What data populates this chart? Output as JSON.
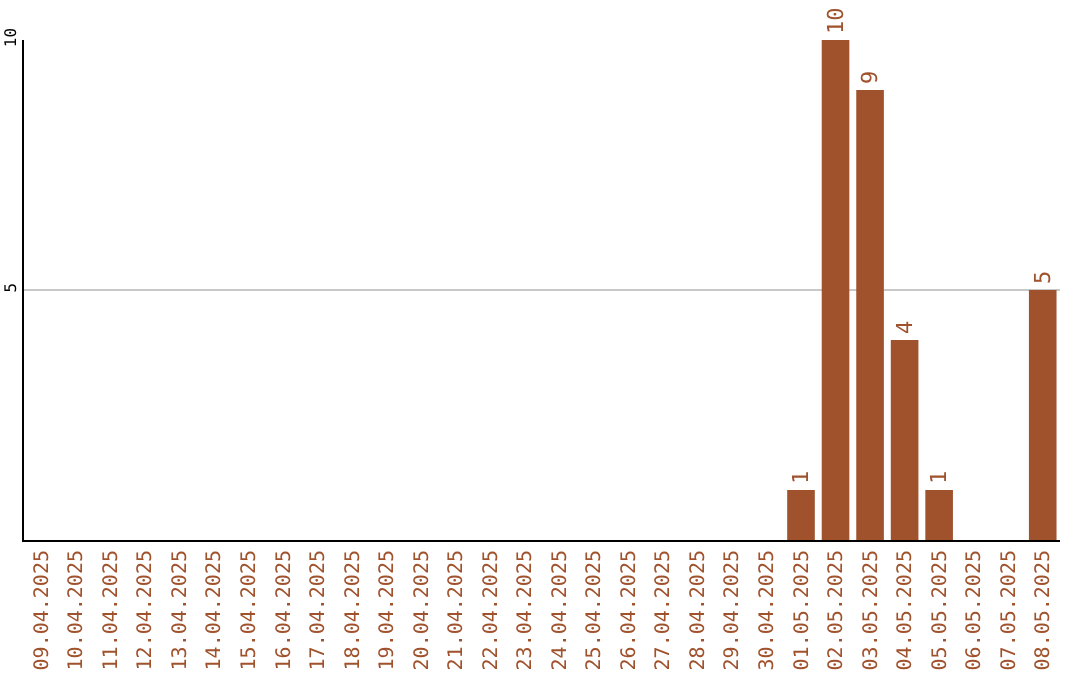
{
  "chart_data": {
    "type": "bar",
    "categories": [
      "09.04.2025",
      "10.04.2025",
      "11.04.2025",
      "12.04.2025",
      "13.04.2025",
      "14.04.2025",
      "15.04.2025",
      "16.04.2025",
      "17.04.2025",
      "18.04.2025",
      "19.04.2025",
      "20.04.2025",
      "21.04.2025",
      "22.04.2025",
      "23.04.2025",
      "24.04.2025",
      "25.04.2025",
      "26.04.2025",
      "27.04.2025",
      "28.04.2025",
      "29.04.2025",
      "30.04.2025",
      "01.05.2025",
      "02.05.2025",
      "03.05.2025",
      "04.05.2025",
      "05.05.2025",
      "06.05.2025",
      "07.05.2025",
      "08.05.2025"
    ],
    "values": [
      0,
      0,
      0,
      0,
      0,
      0,
      0,
      0,
      0,
      0,
      0,
      0,
      0,
      0,
      0,
      0,
      0,
      0,
      0,
      0,
      0,
      0,
      1,
      10,
      9,
      4,
      1,
      0,
      0,
      5
    ],
    "value_labels": [
      null,
      null,
      null,
      null,
      null,
      null,
      null,
      null,
      null,
      null,
      null,
      null,
      null,
      null,
      null,
      null,
      null,
      null,
      null,
      null,
      null,
      null,
      "1",
      "10",
      "9",
      "4",
      "1",
      null,
      null,
      "5"
    ],
    "color": "#a0522d",
    "ylim": [
      0,
      10
    ],
    "yticks": [
      5,
      10
    ],
    "grid": "y",
    "legend": false
  }
}
